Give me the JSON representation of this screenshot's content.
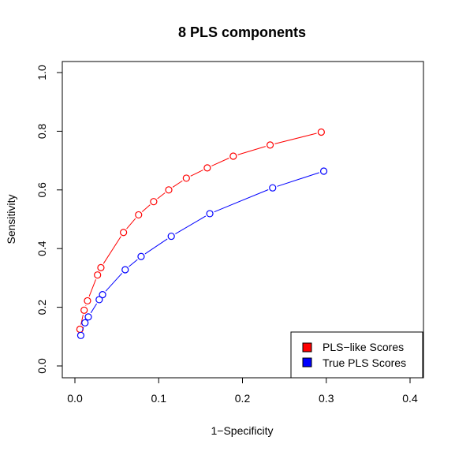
{
  "chart_data": {
    "type": "line",
    "title": "8 PLS components",
    "xlabel": "1−Specificity",
    "ylabel": "Sensitivity",
    "xlim": [
      0.0,
      0.4
    ],
    "ylim": [
      0.0,
      1.0
    ],
    "xticks": [
      "0.0",
      "0.1",
      "0.2",
      "0.3",
      "0.4"
    ],
    "yticks": [
      "0.0",
      "0.2",
      "0.4",
      "0.6",
      "0.8",
      "1.0"
    ],
    "grid": false,
    "legend_position": "bottom-right",
    "series": [
      {
        "name": "PLS−like Scores",
        "color": "#ff0000",
        "x": [
          0.006,
          0.011,
          0.015,
          0.027,
          0.031,
          0.058,
          0.076,
          0.094,
          0.112,
          0.133,
          0.158,
          0.189,
          0.233,
          0.294
        ],
        "y": [
          0.125,
          0.19,
          0.222,
          0.31,
          0.335,
          0.455,
          0.515,
          0.56,
          0.6,
          0.64,
          0.675,
          0.715,
          0.753,
          0.797
        ]
      },
      {
        "name": "True PLS Scores",
        "color": "#0000ff",
        "x": [
          0.007,
          0.012,
          0.016,
          0.029,
          0.033,
          0.06,
          0.079,
          0.115,
          0.161,
          0.236,
          0.297
        ],
        "y": [
          0.104,
          0.147,
          0.167,
          0.226,
          0.243,
          0.328,
          0.373,
          0.442,
          0.519,
          0.607,
          0.664
        ]
      }
    ]
  }
}
